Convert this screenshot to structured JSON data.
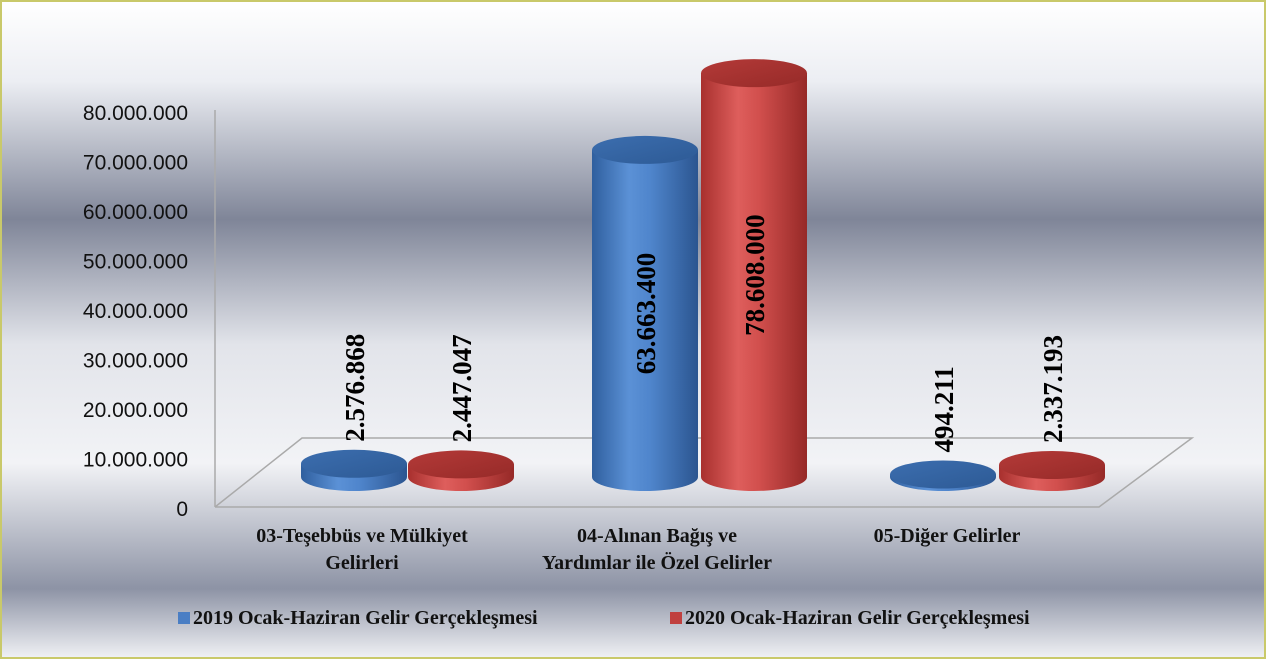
{
  "chart_data": {
    "type": "bar",
    "variant": "3d-cylinder",
    "categories": [
      [
        "03-Teşebbüs ve Mülkiyet",
        "Gelirleri"
      ],
      [
        "04-Alınan Bağış ve",
        "Yardımlar ile Özel Gelirler"
      ],
      [
        "05-Diğer Gelirler"
      ]
    ],
    "series": [
      {
        "name": "2019 Ocak-Haziran Gelir Gerçekleşmesi",
        "color": "#4a7ec4",
        "values": [
          2576868,
          63663400,
          494211
        ],
        "labels": [
          "2.576.868",
          "63.663.400",
          "494.211"
        ]
      },
      {
        "name": "2020 Ocak-Haziran Gelir Gerçekleşmesi",
        "color": "#c0403f",
        "values": [
          2447047,
          78608000,
          2337193
        ],
        "labels": [
          "2.447.047",
          "78.608.000",
          "2.337.193"
        ]
      }
    ],
    "yticks": [
      "0",
      "10.000.000",
      "20.000.000",
      "30.000.000",
      "40.000.000",
      "50.000.000",
      "60.000.000",
      "70.000.000",
      "80.000.000"
    ],
    "ylim": [
      0,
      80000000
    ],
    "legend_position": "bottom",
    "grid": false,
    "background": "gray-gradient"
  }
}
